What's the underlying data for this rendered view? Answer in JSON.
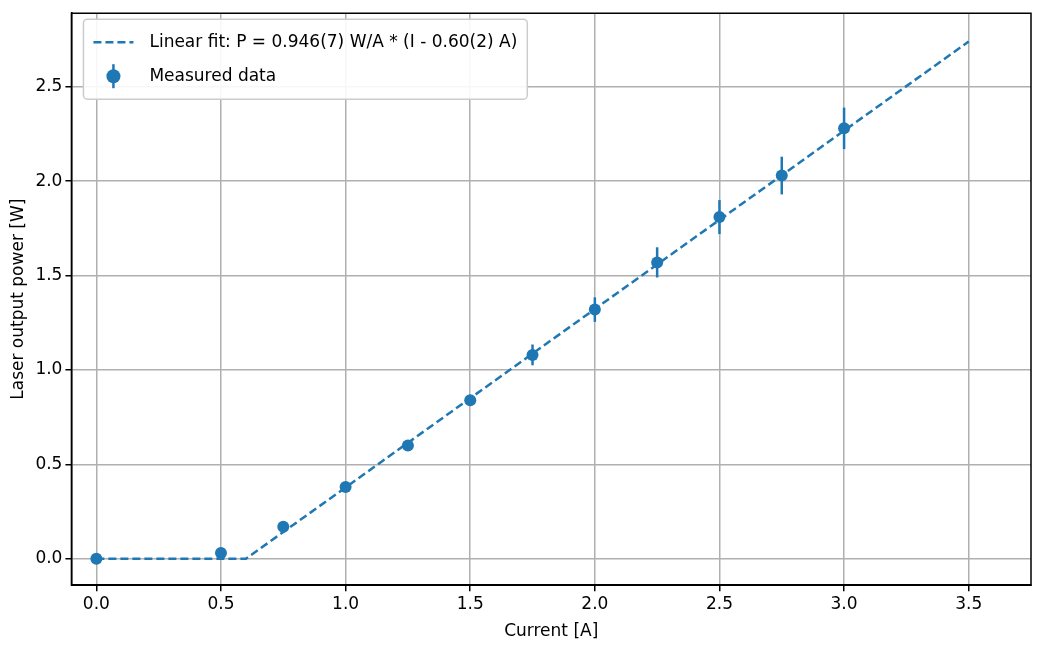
{
  "chart_data": {
    "type": "scatter",
    "xlabel": "Current [A]",
    "ylabel": "Laser output power [W]",
    "xlim": [
      -0.1,
      3.75
    ],
    "ylim": [
      -0.14,
      2.89
    ],
    "xticks": [
      {
        "value": 0,
        "label": "0.0"
      },
      {
        "value": 0.5,
        "label": "0.5"
      },
      {
        "value": 1,
        "label": "1.0"
      },
      {
        "value": 1.5,
        "label": "1.5"
      },
      {
        "value": 2,
        "label": "2.0"
      },
      {
        "value": 2.5,
        "label": "2.5"
      },
      {
        "value": 3,
        "label": "3.0"
      },
      {
        "value": 3.5,
        "label": "3.5"
      }
    ],
    "yticks": [
      {
        "value": 0,
        "label": "0.0"
      },
      {
        "value": 0.5,
        "label": "0.5"
      },
      {
        "value": 1,
        "label": "1.0"
      },
      {
        "value": 1.5,
        "label": "1.5"
      },
      {
        "value": 2,
        "label": "2.0"
      },
      {
        "value": 2.5,
        "label": "2.5"
      }
    ],
    "grid": true,
    "legend": "top left",
    "series": [
      {
        "type": "line",
        "name": "Linear fit: P = 0.946(7) W/A * (I - 0.60(2) A)",
        "color": "#1f77b4",
        "line_style": "dashed",
        "marker": "none",
        "x": [
          0,
          0.6,
          3.5
        ],
        "values": [
          0,
          0,
          2.74
        ]
      },
      {
        "type": "scatter",
        "name": "Measured data",
        "color": "#1f77b4",
        "marker": "circle",
        "x": [
          0,
          0.5,
          0.75,
          1,
          1.25,
          1.5,
          1.75,
          2,
          2.25,
          2.5,
          2.75,
          3
        ],
        "values": [
          0,
          0.03,
          0.17,
          0.38,
          0.6,
          0.84,
          1.08,
          1.32,
          1.57,
          1.81,
          2.03,
          2.28
        ],
        "errors": [
          null,
          null,
          null,
          null,
          null,
          null,
          0.055,
          0.065,
          0.08,
          0.09,
          0.1,
          0.11
        ]
      }
    ]
  }
}
